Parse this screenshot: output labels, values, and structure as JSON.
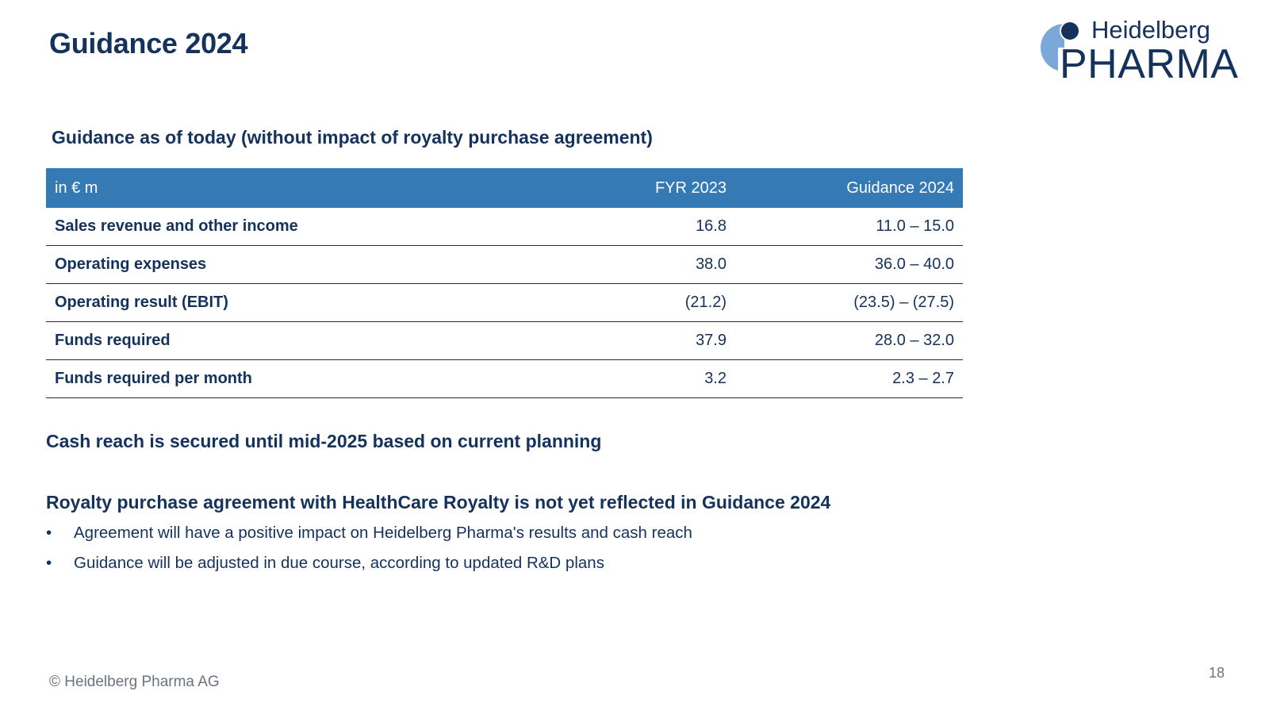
{
  "slide": {
    "title": "Guidance 2024",
    "subtitle": "Guidance as of today (without impact of royalty purchase agreement)"
  },
  "logo": {
    "line1": "Heidelberg",
    "line2": "PHARMA",
    "colors": {
      "light": "#7aa9d9",
      "dark": "#14325c"
    }
  },
  "table": {
    "headers": {
      "label": "in € m",
      "fyr": "FYR 2023",
      "guidance": "Guidance 2024"
    },
    "rows": [
      {
        "label": "Sales revenue and other income",
        "fyr": "16.8",
        "guidance": "11.0 – 15.0"
      },
      {
        "label": "Operating expenses",
        "fyr": "38.0",
        "guidance": "36.0 – 40.0"
      },
      {
        "label": "Operating result (EBIT)",
        "fyr": "(21.2)",
        "guidance": "(23.5) – (27.5)"
      },
      {
        "label": "Funds required",
        "fyr": "37.9",
        "guidance": "28.0 – 32.0"
      },
      {
        "label": "Funds required per month",
        "fyr": "3.2",
        "guidance": "2.3 – 2.7"
      }
    ],
    "header_color": "#3579b5"
  },
  "statements": {
    "cash_reach": "Cash reach is secured until mid-2025 based on current planning",
    "royalty": "Royalty purchase agreement with HealthCare Royalty is not yet reflected in Guidance 2024"
  },
  "bullets": [
    "Agreement will have a positive impact on Heidelberg Pharma's results and cash reach",
    "Guidance will be adjusted in due course, according to updated R&D plans"
  ],
  "bullet_symbol": "•",
  "footer": {
    "copyright": "© Heidelberg Pharma AG",
    "page_number": "18"
  },
  "colors": {
    "text": "#14325c",
    "muted": "#6b7280"
  }
}
